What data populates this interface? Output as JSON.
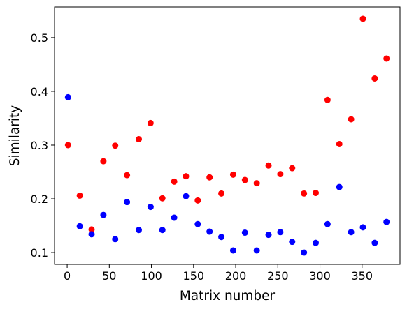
{
  "chart_data": {
    "type": "scatter",
    "title": "",
    "xlabel": "Matrix number",
    "ylabel": "Similarity",
    "xlim": [
      -15,
      395
    ],
    "ylim": [
      0.078,
      0.557
    ],
    "xticks": [
      0,
      50,
      100,
      150,
      200,
      250,
      300,
      350
    ],
    "yticks": [
      0.1,
      0.2,
      0.3,
      0.4,
      0.5
    ],
    "grid": false,
    "legend": "none",
    "series": [
      {
        "color": "#ff0000",
        "points": [
          [
            1,
            0.3
          ],
          [
            15,
            0.206
          ],
          [
            29,
            0.143
          ],
          [
            43,
            0.27
          ],
          [
            57,
            0.299
          ],
          [
            71,
            0.244
          ],
          [
            85,
            0.311
          ],
          [
            99,
            0.341
          ],
          [
            113,
            0.201
          ],
          [
            127,
            0.232
          ],
          [
            141,
            0.242
          ],
          [
            155,
            0.197
          ],
          [
            169,
            0.24
          ],
          [
            183,
            0.21
          ],
          [
            197,
            0.245
          ],
          [
            211,
            0.235
          ],
          [
            225,
            0.229
          ],
          [
            239,
            0.262
          ],
          [
            253,
            0.246
          ],
          [
            267,
            0.257
          ],
          [
            281,
            0.21
          ],
          [
            295,
            0.211
          ],
          [
            309,
            0.384
          ],
          [
            323,
            0.302
          ],
          [
            337,
            0.348
          ],
          [
            351,
            0.535
          ],
          [
            365,
            0.424
          ],
          [
            379,
            0.461
          ]
        ]
      },
      {
        "color": "#0000ff",
        "points": [
          [
            1,
            0.389
          ],
          [
            15,
            0.149
          ],
          [
            29,
            0.134
          ],
          [
            43,
            0.17
          ],
          [
            57,
            0.125
          ],
          [
            71,
            0.194
          ],
          [
            85,
            0.142
          ],
          [
            99,
            0.185
          ],
          [
            113,
            0.142
          ],
          [
            127,
            0.165
          ],
          [
            141,
            0.205
          ],
          [
            155,
            0.153
          ],
          [
            169,
            0.139
          ],
          [
            183,
            0.129
          ],
          [
            197,
            0.104
          ],
          [
            211,
            0.137
          ],
          [
            225,
            0.104
          ],
          [
            239,
            0.133
          ],
          [
            253,
            0.138
          ],
          [
            267,
            0.12
          ],
          [
            281,
            0.1
          ],
          [
            295,
            0.118
          ],
          [
            309,
            0.153
          ],
          [
            323,
            0.222
          ],
          [
            337,
            0.138
          ],
          [
            351,
            0.147
          ],
          [
            365,
            0.118
          ],
          [
            379,
            0.157
          ]
        ]
      }
    ]
  }
}
